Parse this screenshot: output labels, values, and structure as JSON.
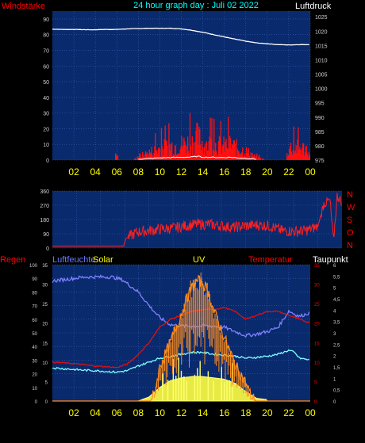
{
  "header": {
    "left_label": "Windstärke",
    "title": "24 hour graph day : Juli 02 2022",
    "right_label": "Luftdruck"
  },
  "colors": {
    "background": "#000000",
    "plot_bg": "#0a2a6e",
    "grid": "#3a5fb0",
    "wind": "#ff1010",
    "gust": "#ffffff",
    "pressure": "#ffffff",
    "direction": "#ff2020",
    "humidity": "#8080ff",
    "temperature": "#e01010",
    "dewpoint": "#80ffff",
    "solar": "#ffff40",
    "uv": "#ff8c1a",
    "yellow_text": "#ffff00",
    "red_text": "#ff0000",
    "cyan_text": "#00ffff",
    "blue_text": "#6a7cff"
  },
  "chart_data": [
    {
      "id": "wind_pressure",
      "type": "line",
      "title": "24 hour graph day : Juli 02 2022",
      "left_axis": {
        "label": "Windstärke",
        "range": [
          0,
          95
        ],
        "ticks": [
          "0",
          "10",
          "20",
          "30",
          "40",
          "50",
          "60",
          "70",
          "80",
          "90"
        ]
      },
      "right_axis": {
        "label": "Luftdruck",
        "range": [
          975,
          1027
        ],
        "ticks": [
          "975",
          "980",
          "985",
          "990",
          "995",
          "1000",
          "1005",
          "1010",
          "1015",
          "1020",
          "1025"
        ]
      },
      "x_ticks": [
        "02",
        "04",
        "06",
        "08",
        "10",
        "12",
        "14",
        "16",
        "18",
        "20",
        "22",
        "00"
      ],
      "series": [
        {
          "name": "Luftdruck",
          "axis": "right",
          "x": [
            0,
            1,
            2,
            3,
            4,
            5,
            6,
            7,
            8,
            9,
            10,
            11,
            12,
            13,
            14,
            15,
            16,
            17,
            18,
            19,
            20,
            21,
            22,
            23,
            24
          ],
          "y": [
            1020.7,
            1020.6,
            1020.6,
            1020.5,
            1020.5,
            1020.6,
            1020.6,
            1020.8,
            1020.9,
            1021.0,
            1021.0,
            1021.0,
            1020.8,
            1020.3,
            1019.6,
            1018.8,
            1018.0,
            1017.2,
            1016.5,
            1015.9,
            1015.6,
            1015.3,
            1015.2,
            1015.3,
            1015.3
          ]
        },
        {
          "axis": "left",
          "x": [
            0,
            5.8,
            6.0,
            6.2,
            7.5,
            8.0,
            8.5,
            9.0,
            10,
            11,
            12,
            13,
            13.5,
            14,
            15,
            16,
            16.5,
            17,
            18,
            18.5,
            19,
            20,
            21.8,
            22,
            23.8,
            24
          ],
          "y": [
            0,
            0,
            5,
            0,
            0,
            3,
            4,
            6,
            9,
            11,
            12,
            14,
            18,
            13,
            12,
            11,
            13,
            10,
            7,
            5,
            2,
            0,
            0,
            10,
            9,
            0
          ]
        }
      ]
    },
    {
      "id": "direction",
      "type": "line",
      "left_axis": {
        "range": [
          0,
          360
        ],
        "ticks": [
          "0",
          "90",
          "180",
          "270",
          "360"
        ]
      },
      "right_axis": {
        "ticks": [
          "N",
          "W",
          "S",
          "O",
          "N"
        ]
      },
      "series": [
        {
          "axis": "left",
          "x": [
            0,
            5.0,
            5.9,
            6.1,
            7,
            8,
            9,
            10,
            11,
            12,
            13,
            14,
            15,
            16,
            17,
            18,
            19,
            20,
            21,
            22,
            22.5,
            23,
            23.3,
            23.6,
            24
          ],
          "y": [
            12,
            12,
            12,
            60,
            100,
            110,
            120,
            125,
            140,
            150,
            150,
            140,
            130,
            140,
            145,
            140,
            110,
            105,
            110,
            135,
            280,
            300,
            45,
            330,
            290
          ]
        }
      ]
    },
    {
      "id": "solar_uv_temp",
      "type": "line",
      "labels": {
        "rain": "Regen",
        "humidity": "Luftfeuchte",
        "solar": "Solar",
        "uv": "UV",
        "temperature": "Temperatur",
        "dewpoint": "Taupunkt"
      },
      "axes": {
        "rain": {
          "range": [
            0,
            100
          ],
          "ticks": [
            "0",
            "10",
            "20",
            "30",
            "40",
            "50",
            "60",
            "70",
            "80",
            "90",
            "100"
          ]
        },
        "temperature": {
          "range": [
            0,
            35
          ],
          "ticks": [
            "0",
            "5",
            "10",
            "15",
            "20",
            "25",
            "30",
            "35"
          ]
        },
        "uv_index": {
          "range": [
            0,
            6
          ],
          "ticks": [
            "0",
            "0,5",
            "1",
            "1,5",
            "2",
            "2,5",
            "3",
            "3,5",
            "4",
            "4,5",
            "5",
            "5,5",
            "6"
          ]
        }
      },
      "series": [
        {
          "name": "Luftfeuchte",
          "axis": "rain",
          "x": [
            0,
            1,
            2,
            3,
            4,
            5,
            5.5,
            6,
            6.5,
            7,
            8,
            9,
            10,
            11,
            12,
            13,
            14,
            15,
            16,
            17,
            18,
            19,
            20,
            21,
            22,
            22.5,
            23,
            24
          ],
          "y": [
            88,
            89,
            90,
            91,
            91,
            91,
            91,
            90,
            89,
            86,
            80,
            70,
            61,
            56,
            55,
            55,
            55,
            55,
            54,
            51,
            48,
            49,
            51,
            54,
            66,
            64,
            62,
            65
          ]
        },
        {
          "name": "Temperatur",
          "axis": "temperature",
          "x": [
            0,
            1,
            2,
            3,
            4,
            5,
            6,
            7,
            8,
            9,
            10,
            11,
            12,
            13,
            14,
            15,
            16,
            17,
            18,
            19,
            20,
            21,
            22,
            23,
            24
          ],
          "y": [
            10,
            9.8,
            9.6,
            9.3,
            9.0,
            8.8,
            8.6,
            9.5,
            12,
            15,
            19,
            21,
            22,
            23,
            23.5,
            23.5,
            24,
            23,
            21,
            22,
            23,
            23,
            22,
            21,
            20
          ]
        },
        {
          "name": "Taupunkt",
          "axis": "temperature",
          "x": [
            0,
            1,
            2,
            3,
            4,
            5,
            6,
            7,
            8,
            9,
            10,
            11,
            12,
            13,
            14,
            15,
            16,
            17,
            18,
            19,
            20,
            21,
            22,
            22.5,
            23,
            24
          ],
          "y": [
            8.5,
            8.3,
            8.1,
            7.9,
            7.8,
            7.6,
            7.4,
            7.8,
            9,
            10,
            11,
            11.5,
            12,
            12.5,
            12.5,
            12,
            11.8,
            11.5,
            11,
            11.2,
            11.5,
            12,
            13,
            12.5,
            11,
            10.5
          ]
        },
        {
          "name": "Solar",
          "axis": "rain",
          "x": [
            0,
            8,
            9,
            10,
            11,
            12,
            13,
            14,
            15,
            16,
            17,
            18,
            19,
            20,
            21,
            22,
            23,
            24
          ],
          "y": [
            0,
            0,
            3,
            10,
            15,
            17,
            18,
            18,
            17,
            16,
            13,
            7,
            2,
            1,
            1,
            0,
            0,
            0
          ]
        },
        {
          "name": "UV",
          "axis": "uv_index",
          "x": [
            0,
            9,
            9.5,
            10,
            11,
            12,
            12.5,
            13,
            13.5,
            14,
            14.5,
            15,
            16,
            16.5,
            17,
            18,
            18.5,
            19,
            24
          ],
          "y": [
            0,
            0,
            0.3,
            1.5,
            2.6,
            3.8,
            4.5,
            5.0,
            5.3,
            5.2,
            4.8,
            4.0,
            2.8,
            2.2,
            1.6,
            0.8,
            0.2,
            0,
            0
          ]
        }
      ]
    }
  ]
}
